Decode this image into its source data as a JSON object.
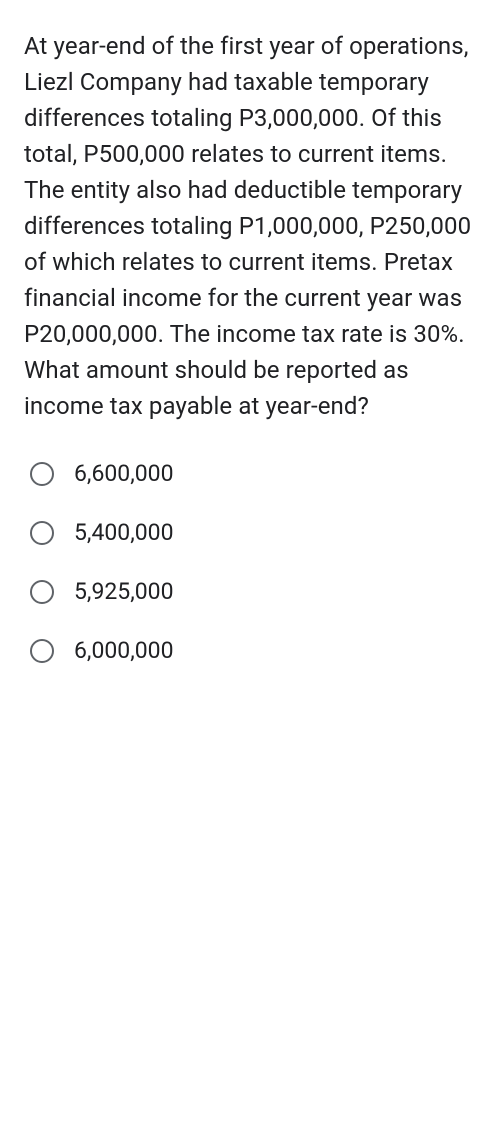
{
  "question": {
    "text": "At year-end of the first year of operations, Liezl Company had taxable temporary differences totaling P3,000,000. Of this total, P500,000 relates to current items. The entity also had deductible temporary differences totaling P1,000,000, P250,000 of which relates to current items. Pretax financial income for the current year was P20,000,000. The income tax rate is 30%. What amount should be reported as income tax payable at year-end?",
    "text_fontsize": 24,
    "text_color": "#202124",
    "line_height": 1.5
  },
  "options": [
    {
      "label": "6,600,000"
    },
    {
      "label": "5,400,000"
    },
    {
      "label": "5,925,000"
    },
    {
      "label": "6,000,000"
    }
  ],
  "styling": {
    "background_color": "#ffffff",
    "radio_border_color": "#5f6368",
    "radio_size": 24,
    "option_fontsize": 23,
    "option_color": "#202124"
  }
}
